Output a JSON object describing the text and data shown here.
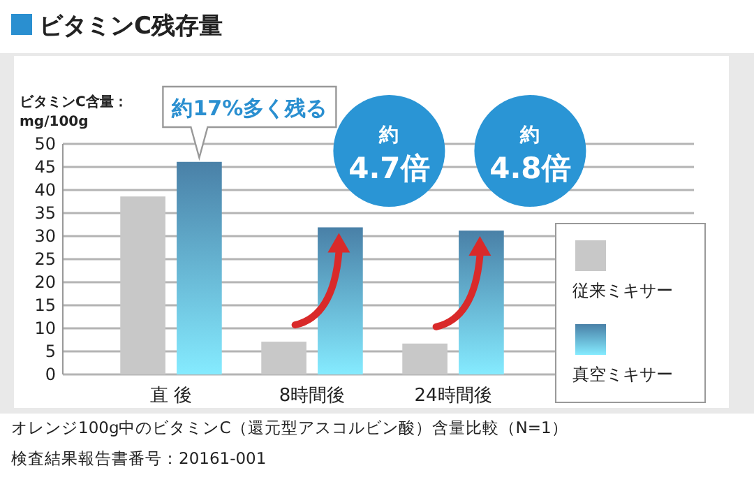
{
  "chart_data": {
    "type": "bar",
    "title": "ビタミンC残存量",
    "ylabel": "ビタミンC含量：\nmg/100g",
    "categories": [
      "直 後",
      "8時間後",
      "24時間後"
    ],
    "series": [
      {
        "name": "従来ミキサー",
        "color": "#c8c8c8",
        "values": [
          38.6,
          7.1,
          6.7
        ]
      },
      {
        "name": "真空ミキサー",
        "color": "#5a9fcf",
        "values": [
          46.1,
          31.9,
          31.2
        ]
      }
    ],
    "ylim": [
      0,
      50
    ],
    "yticks": [
      0,
      5,
      10,
      15,
      20,
      25,
      30,
      35,
      40,
      45,
      50
    ],
    "grid": "y",
    "legend": "right",
    "annotations": [
      {
        "text": "約17%多く残る",
        "x": "直 後",
        "y": 46.1
      },
      {
        "text": "約\n4.7倍",
        "x": "8時間後",
        "y": 31.9
      },
      {
        "text": "約\n4.8倍",
        "x": "24時間後",
        "y": 31.2
      },
      "オレンジ100g中のビタミンC（還元型アスコルビン酸）含量比較（N=1）",
      "検査結果報告書番号：20161-001"
    ]
  }
}
